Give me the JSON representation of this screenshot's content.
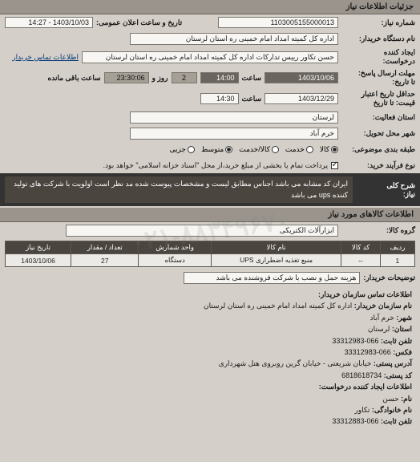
{
  "header": {
    "title": "جزئیات اطلاعات نیاز"
  },
  "watermark": "۰۲۱-۸۸۳۴۹۶۷۰",
  "form": {
    "need_no_label": "شماره نیاز:",
    "need_no": "1103005155000013",
    "announce_label": "تاریخ و ساعت اعلان عمومی:",
    "announce_val": "1403/10/03 - 14:27",
    "buyer_label": "نام دستگاه خریدار:",
    "buyer_val": "اداره کل کمیته امداد امام خمینی ره استان لرستان",
    "creator_label": "ایجاد کننده\nدرخواست:",
    "creator_val": "حسن تکاور رییس تدارکات اداره کل کمیته امداد امام خمینی ره استان لرستان",
    "contact_link": "اطلاعات تماس خریدار",
    "deadline_label": "مهلت ارسال پاسخ:\nتا تاریخ:",
    "deadline_date": "1403/10/06",
    "deadline_time_lbl": "ساعت",
    "deadline_time": "14:00",
    "and_lbl": "و",
    "days_left": "2",
    "hours_left_lbl": "روز و",
    "hours_left": "23:30:06",
    "hours_left_suffix": "ساعت باقی مانده",
    "min_valid_label": "حداقل تاریخ اعتبار\nقیمت: تا تاریخ",
    "min_valid_date": "1403/12/29",
    "min_valid_time": "14:30",
    "province_label": "استان فعالیت:",
    "province_val": "لرستان",
    "city_label": "شهر محل تحویل:",
    "city_val": "خرم آباد",
    "subjgrp_label": "طبقه بندی موضوعی:",
    "rg_all": "کالا",
    "rg_service": "خدمت",
    "rg_goods": "کالا/خدمت",
    "rg_intermediate": "متوسط",
    "rg_small": "جزیی",
    "proc_label": "نوع فرآیند خرید:",
    "proc_note": "پرداخت تمام یا بخشی از مبلغ خرید،از محل \"اسناد خزانه اسلامی\" خواهد بود."
  },
  "desc": {
    "label": "شرح کلی\nنیاز:",
    "text": "ایران کد مشابه می باشد اجناس مطابق لیست و مشخصات پیوست شده مد نظر است اولویت با شرکت های تولید کننده ups می باشد"
  },
  "goods_header": "اطلاعات کالاهای مورد نیاز",
  "goods_group": {
    "label": "گروه کالا:",
    "val": "ابزارآلات الکتریکی"
  },
  "table": {
    "cols": [
      "ردیف",
      "کد کالا",
      "نام کالا",
      "واحد شمارش",
      "تعداد / مقدار",
      "تاریخ نیاز"
    ],
    "rows": [
      [
        "1",
        "--",
        "منبع تغذیه اضطراری UPS",
        "دستگاه",
        "27",
        "1403/10/06"
      ]
    ]
  },
  "buyer_note": {
    "label": "توضیحات خریدار:",
    "val": "هزینه حمل و نصب با شرکت فروشنده می باشد"
  },
  "contact_section": {
    "title": "اطلاعات تماس سازمان خریدار:",
    "org_label": "نام سازمان خریدار:",
    "org": "اداره کل کمیته امداد امام خمینی ره استان لرستان",
    "city_label": "شهر:",
    "city": "خرم آباد",
    "province_label": "استان:",
    "province": "لرستان",
    "phone_label": "تلفن ثابت:",
    "phone": "066-33312983",
    "fax_label": "فکس:",
    "fax": "066-33312983",
    "addr_label": "آدرس پستی:",
    "addr": "خیابان شریعتی - خیابان گرین روبروی هتل شهرداری",
    "zip_label": "کد پستی:",
    "zip": "6818618734",
    "req_creator_title": "اطلاعات ایجاد کننده درخواست:",
    "fname_label": "نام:",
    "fname": "حسن",
    "lname_label": "نام خانوادگی:",
    "lname": "تکاور",
    "tel_label": "تلفن ثابت:",
    "tel": "066-33312883"
  },
  "colors": {
    "band": "#333333",
    "band_inner": "#4a453f",
    "darkbox": "#6a655e",
    "medbox": "#a59f96"
  }
}
